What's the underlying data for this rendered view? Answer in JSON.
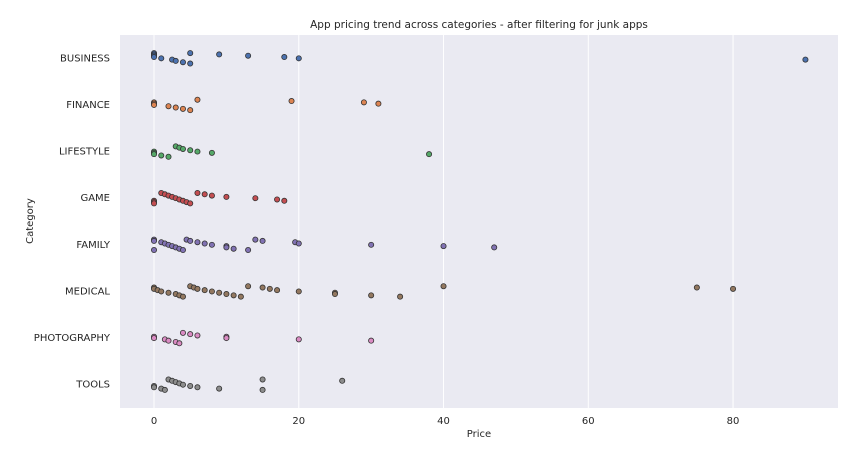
{
  "chart_data": {
    "type": "strip",
    "title": "App pricing trend across categories - after filtering for junk apps",
    "x_label": "Price",
    "y_label": "Category",
    "categories": [
      "BUSINESS",
      "FINANCE",
      "LIFESTYLE",
      "GAME",
      "FAMILY",
      "MEDICAL",
      "PHOTOGRAPHY",
      "TOOLS"
    ],
    "colors": [
      "#4c72b0",
      "#dd8452",
      "#55a868",
      "#c44e52",
      "#8172b3",
      "#937860",
      "#da8bc3",
      "#8c8c8c"
    ],
    "values": [
      [
        0,
        0,
        0,
        0,
        1,
        2.5,
        3,
        4,
        5,
        5,
        9,
        13,
        18,
        20,
        90
      ],
      [
        0,
        0,
        0,
        2,
        3,
        4,
        5,
        6,
        19,
        29,
        31
      ],
      [
        0,
        0,
        0,
        1,
        2,
        3,
        3.5,
        4,
        5,
        6,
        8,
        38
      ],
      [
        0,
        0,
        0,
        1,
        1.5,
        2,
        2.5,
        3,
        3.5,
        4,
        4.5,
        5,
        6,
        7,
        8,
        10,
        14,
        17,
        18
      ],
      [
        0,
        0,
        0,
        1,
        1.5,
        2,
        2.5,
        3,
        3.5,
        4,
        4.5,
        5,
        6,
        7,
        8,
        10,
        10,
        11,
        13,
        14,
        15,
        19.5,
        20,
        30,
        40,
        47
      ],
      [
        0,
        0,
        0.5,
        1,
        2,
        3,
        3.5,
        4,
        5,
        5.5,
        6,
        7,
        8,
        9,
        10,
        11,
        12,
        13,
        15,
        16,
        17,
        20,
        25,
        25,
        30,
        34,
        40,
        75,
        80
      ],
      [
        0,
        0,
        1.5,
        2,
        3,
        3.5,
        4,
        5,
        6,
        10,
        10,
        20,
        30
      ],
      [
        0,
        0,
        1,
        1.5,
        2,
        2.5,
        3,
        3.5,
        4,
        5,
        6,
        9,
        15,
        15,
        26
      ]
    ],
    "xlim": [
      -4.7,
      94.5
    ],
    "xticks": [
      0,
      20,
      40,
      60,
      80
    ],
    "grid": true
  }
}
